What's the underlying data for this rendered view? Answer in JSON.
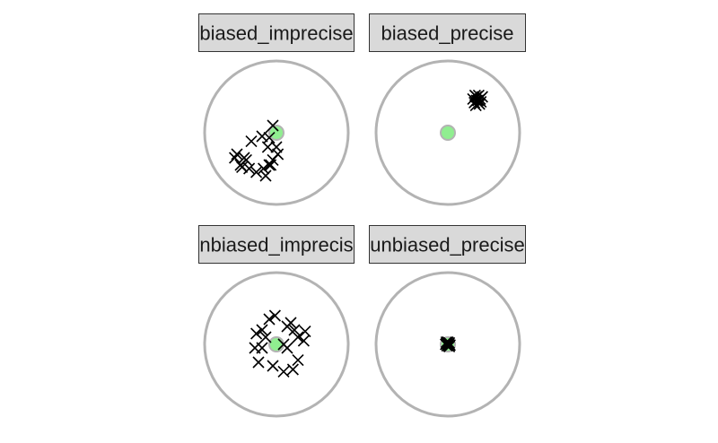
{
  "chart_data": {
    "type": "scatter",
    "facets": [
      {
        "strip_label": "biased_imprecise",
        "points": [
          [
            -0.05,
            0.1
          ],
          [
            -0.1,
            -0.07
          ],
          [
            -0.2,
            -0.05
          ],
          [
            0.0,
            -0.2
          ],
          [
            -0.12,
            -0.2
          ],
          [
            -0.08,
            -0.45
          ],
          [
            -0.35,
            -0.12
          ],
          [
            -0.45,
            -0.35
          ],
          [
            -0.55,
            -0.3
          ],
          [
            -0.5,
            -0.45
          ],
          [
            -0.42,
            -0.38
          ],
          [
            -0.38,
            -0.5
          ],
          [
            -0.18,
            -0.5
          ],
          [
            -0.1,
            -0.45
          ],
          [
            -0.05,
            -0.38
          ],
          [
            -0.15,
            -0.6
          ],
          [
            -0.28,
            -0.55
          ],
          [
            -0.48,
            -0.48
          ],
          [
            -0.58,
            -0.35
          ],
          [
            0.02,
            -0.3
          ]
        ]
      },
      {
        "strip_label": "biased_precise",
        "points": [
          [
            0.35,
            0.47
          ],
          [
            0.4,
            0.5
          ],
          [
            0.45,
            0.47
          ],
          [
            0.38,
            0.52
          ],
          [
            0.42,
            0.45
          ],
          [
            0.48,
            0.5
          ],
          [
            0.37,
            0.42
          ],
          [
            0.44,
            0.4
          ],
          [
            0.4,
            0.45
          ],
          [
            0.46,
            0.43
          ],
          [
            0.39,
            0.38
          ],
          [
            0.43,
            0.52
          ]
        ]
      },
      {
        "strip_label": "unbiased_imprecise",
        "points": [
          [
            -0.2,
            0.2
          ],
          [
            -0.02,
            0.4
          ],
          [
            -0.1,
            0.35
          ],
          [
            0.2,
            0.3
          ],
          [
            0.3,
            0.1
          ],
          [
            0.25,
            0.2
          ],
          [
            -0.15,
            0.1
          ],
          [
            -0.3,
            -0.05
          ],
          [
            -0.2,
            -0.05
          ],
          [
            0.15,
            0.25
          ],
          [
            0.4,
            0.18
          ],
          [
            0.38,
            0.05
          ],
          [
            0.15,
            -0.05
          ],
          [
            0.1,
            0.0
          ],
          [
            0.3,
            -0.22
          ],
          [
            -0.25,
            -0.25
          ],
          [
            -0.05,
            -0.3
          ],
          [
            0.1,
            -0.38
          ],
          [
            0.23,
            -0.35
          ],
          [
            -0.28,
            0.15
          ]
        ]
      },
      {
        "strip_label": "unbiased_precise",
        "points": [
          [
            0.0,
            0.0
          ],
          [
            0.02,
            0.02
          ],
          [
            -0.02,
            0.01
          ],
          [
            0.01,
            -0.02
          ],
          [
            -0.01,
            -0.02
          ],
          [
            0.03,
            -0.01
          ],
          [
            -0.03,
            0.0
          ],
          [
            0.0,
            0.03
          ],
          [
            0.02,
            -0.03
          ],
          [
            -0.02,
            0.03
          ],
          [
            0.01,
            0.0
          ],
          [
            -0.01,
            0.01
          ]
        ]
      }
    ],
    "target": {
      "circle_radius": 1.0,
      "center": [
        0,
        0
      ]
    },
    "colors": {
      "strip_fill": "#d9d9d9",
      "strip_border": "#333333",
      "circle": "#b3b3b3",
      "center": "#90ee90",
      "marker": "#000000"
    }
  }
}
